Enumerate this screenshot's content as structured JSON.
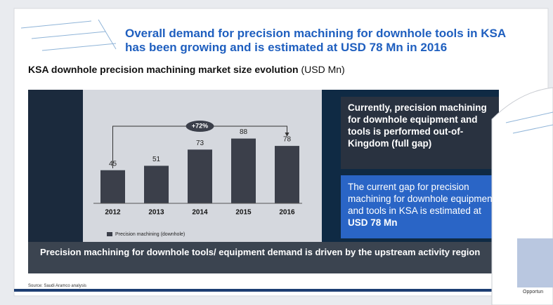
{
  "slide": {
    "title_lines": [
      "Overall demand for precision machining for downhole tools in KSA",
      "has been growing and is estimated at USD 78 Mn in 2016"
    ],
    "subtitle": "KSA downhole precision machining market size evolution",
    "subtitle_unit": "(USD Mn)",
    "box_dark": "Currently, precision machining for downhole equipment and tools is performed out-of-Kingdom (full gap)",
    "box_blue": "The current gap for precision machining for downhole equipment and tools in KSA is estimated at",
    "box_blue_bold": "USD 78 Mn",
    "banner": "Precision machining for downhole tools/ equipment demand is driven by the upstream activity region",
    "source": "Source: Saudi Aramco analysis",
    "next_slide_text": "Opportun"
  },
  "chart_data": {
    "type": "bar",
    "categories": [
      "2012",
      "2013",
      "2014",
      "2015",
      "2016"
    ],
    "series": [
      {
        "name": "Precision machining (downhole)",
        "color": "#3b3f4a",
        "values": [
          45,
          51,
          73,
          88,
          78
        ]
      }
    ],
    "annotation": "+72%"
  }
}
